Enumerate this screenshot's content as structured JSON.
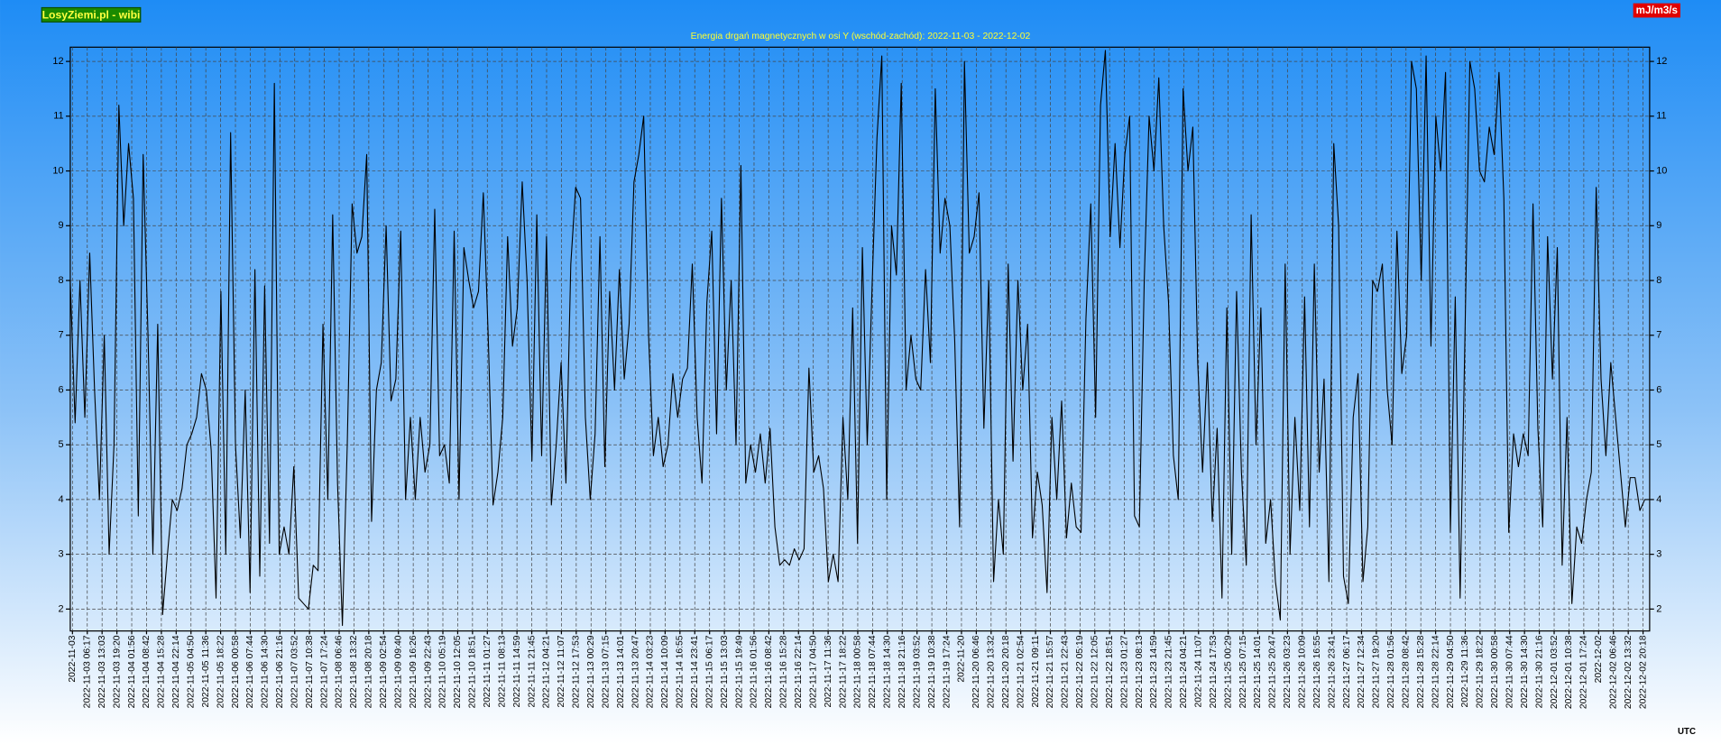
{
  "chart_data": {
    "type": "line",
    "title": "Energia drgań magnetycznych w osi Y (wschód-zachód): 2022-11-03 - 2022-12-02",
    "site_label": "LosyZiemi.pl - wibi",
    "unit_label": "mJ/m3/s",
    "timezone_label": "UTC",
    "color": "#000000",
    "grid": true,
    "ylim": [
      1.6,
      12.26
    ],
    "yticks": [
      2,
      3,
      4,
      5,
      6,
      7,
      8,
      9,
      10,
      11,
      12
    ],
    "x_tick_labels": [
      "2022-11-03",
      "2022-11-03 06:17",
      "2022-11-03 13:03",
      "2022-11-03 19:20",
      "2022-11-04 01:56",
      "2022-11-04 08:42",
      "2022-11-04 15:28",
      "2022-11-04 22:14",
      "2022-11-05 04:50",
      "2022-11-05 11:36",
      "2022-11-05 18:22",
      "2022-11-06 00:58",
      "2022-11-06 07:44",
      "2022-11-06 14:30",
      "2022-11-06 21:16",
      "2022-11-07 03:52",
      "2022-11-07 10:38",
      "2022-11-07 17:24",
      "2022-11-08 06:46",
      "2022-11-08 13:32",
      "2022-11-08 20:18",
      "2022-11-09 02:54",
      "2022-11-09 09:40",
      "2022-11-09 16:26",
      "2022-11-09 22:43",
      "2022-11-10 05:19",
      "2022-11-10 12:05",
      "2022-11-10 18:51",
      "2022-11-11 01:27",
      "2022-11-11 08:13",
      "2022-11-11 14:59",
      "2022-11-11 21:45",
      "2022-11-12 04:21",
      "2022-11-12 11:07",
      "2022-11-12 17:53",
      "2022-11-13 00:29",
      "2022-11-13 07:15",
      "2022-11-13 14:01",
      "2022-11-13 20:47",
      "2022-11-14 03:23",
      "2022-11-14 10:09",
      "2022-11-14 16:55",
      "2022-11-14 23:41",
      "2022-11-15 06:17",
      "2022-11-15 13:03",
      "2022-11-15 19:49",
      "2022-11-16 01:56",
      "2022-11-16 08:42",
      "2022-11-16 15:28",
      "2022-11-16 22:14",
      "2022-11-17 04:50",
      "2022-11-17 11:36",
      "2022-11-17 18:22",
      "2022-11-18 00:58",
      "2022-11-18 07:44",
      "2022-11-18 14:30",
      "2022-11-18 21:16",
      "2022-11-19 03:52",
      "2022-11-19 10:38",
      "2022-11-19 17:24",
      "2022-11-20",
      "2022-11-20 06:46",
      "2022-11-20 13:32",
      "2022-11-20 20:18",
      "2022-11-21 02:54",
      "2022-11-21 09:11",
      "2022-11-21 15:57",
      "2022-11-21 22:43",
      "2022-11-22 05:19",
      "2022-11-22 12:05",
      "2022-11-22 18:51",
      "2022-11-23 01:27",
      "2022-11-23 08:13",
      "2022-11-23 14:59",
      "2022-11-23 21:45",
      "2022-11-24 04:21",
      "2022-11-24 11:07",
      "2022-11-24 17:53",
      "2022-11-25 00:29",
      "2022-11-25 07:15",
      "2022-11-25 14:01",
      "2022-11-25 20:47",
      "2022-11-26 03:23",
      "2022-11-26 10:09",
      "2022-11-26 16:55",
      "2022-11-26 23:41",
      "2022-11-27 06:17",
      "2022-11-27 12:34",
      "2022-11-27 19:20",
      "2022-11-28 01:56",
      "2022-11-28 08:42",
      "2022-11-28 15:28",
      "2022-11-28 22:14",
      "2022-11-29 04:50",
      "2022-11-29 11:36",
      "2022-11-29 18:22",
      "2022-11-30 00:58",
      "2022-11-30 07:44",
      "2022-11-30 14:30",
      "2022-11-30 21:16",
      "2022-12-01 03:52",
      "2022-12-01 10:38",
      "2022-12-01 17:24",
      "2022-12-02",
      "2022-12-02 06:46",
      "2022-12-02 13:32",
      "2022-12-02 20:18"
    ],
    "values": [
      8,
      5.4,
      8,
      5.5,
      8.5,
      6,
      4,
      7,
      3,
      5,
      11.2,
      9,
      10.5,
      9.5,
      3.7,
      10.3,
      7,
      3,
      7.2,
      1.9,
      3,
      4,
      3.8,
      4.2,
      5,
      5.2,
      5.5,
      6.3,
      6,
      4.9,
      2.2,
      7.8,
      3,
      10.7,
      5,
      3.3,
      6,
      2.3,
      8.2,
      2.6,
      7.9,
      3.2,
      11.6,
      3,
      3.5,
      3,
      4.6,
      2.2,
      2.1,
      2,
      2.8,
      2.7,
      7.2,
      4,
      9.2,
      4.3,
      1.7,
      5,
      9.4,
      8.5,
      8.8,
      10.3,
      3.6,
      6,
      6.5,
      9,
      5.8,
      6.2,
      8.9,
      4,
      5.5,
      4,
      5.5,
      4.5,
      5,
      9.3,
      4.8,
      5,
      4.3,
      8.9,
      4,
      8.6,
      8,
      7.5,
      7.8,
      9.6,
      7,
      3.9,
      4.5,
      5.5,
      8.8,
      6.8,
      7.5,
      9.8,
      8,
      4.7,
      9.2,
      4.8,
      8.8,
      3.9,
      5,
      6.5,
      4.3,
      8.3,
      9.7,
      9.5,
      5.5,
      4,
      5.2,
      8.8,
      4.6,
      7.8,
      6,
      8.2,
      6.2,
      7.2,
      9.8,
      10.3,
      11,
      7,
      4.8,
      5.5,
      4.6,
      5,
      6.3,
      5.5,
      6.2,
      6.4,
      8.3,
      5.5,
      4.3,
      7.6,
      8.9,
      5.2,
      9.5,
      6,
      8,
      5,
      10.1,
      4.3,
      5,
      4.5,
      5.2,
      4.3,
      5.3,
      3.5,
      2.8,
      2.9,
      2.8,
      3.1,
      2.9,
      3.1,
      6.4,
      4.5,
      4.8,
      4.2,
      2.5,
      3,
      2.5,
      5.5,
      4,
      7.5,
      3.2,
      8.6,
      5,
      7.9,
      10.6,
      12.1,
      4,
      9,
      8.1,
      11.6,
      6,
      7,
      6.2,
      6,
      8.2,
      6.5,
      11.5,
      8.5,
      9.5,
      9,
      6.9,
      3.5,
      12,
      8.5,
      8.8,
      9.6,
      5.3,
      8,
      2.5,
      4,
      3,
      8.3,
      4.7,
      8,
      6,
      7.2,
      3.3,
      4.5,
      3.9,
      2.3,
      5.5,
      4,
      5.8,
      3.3,
      4.3,
      3.5,
      3.4,
      7.3,
      9.4,
      5.5,
      11.2,
      12.2,
      8.8,
      10.5,
      8.6,
      10.3,
      11,
      3.7,
      3.5,
      8,
      11,
      10,
      11.7,
      9,
      7.6,
      4.8,
      4,
      11.5,
      10,
      10.8,
      6.5,
      4.5,
      6.5,
      3.6,
      5.3,
      2.2,
      7.5,
      3,
      7.8,
      4.5,
      2.8,
      9.2,
      5,
      7.5,
      3.2,
      4,
      2.5,
      1.8,
      8.3,
      3,
      5.5,
      3.8,
      7.7,
      3.5,
      8.3,
      4.5,
      6.2,
      2.5,
      10.5,
      9,
      2.6,
      2.1,
      5.5,
      6.3,
      2.5,
      3.5,
      8,
      7.8,
      8.3,
      6,
      5,
      8.9,
      6.3,
      7,
      12,
      11.5,
      8,
      12.1,
      6.8,
      11,
      10,
      11.8,
      3.4,
      7.7,
      2.2,
      7,
      12,
      11.5,
      10,
      9.8,
      10.8,
      10.3,
      11.8,
      9.5,
      3.4,
      5.2,
      4.6,
      5.2,
      4.8,
      9.4,
      5.3,
      3.5,
      8.8,
      6.2,
      8.6,
      2.8,
      5.5,
      2.1,
      3.5,
      3.2,
      4,
      4.5,
      9.7,
      6.2,
      4.8,
      6.5,
      5.5,
      4.5,
      3.5,
      4.4,
      4.4,
      3.8,
      4,
      4
    ]
  }
}
